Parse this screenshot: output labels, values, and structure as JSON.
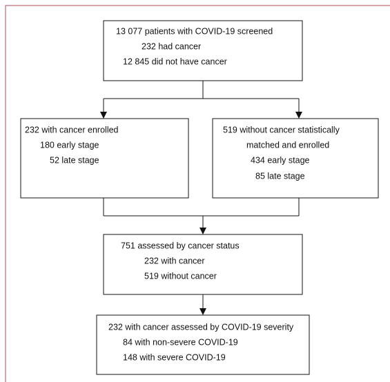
{
  "nodes": [
    {
      "lines": [
        "13 077 patients with COVID-19 screened",
        "232 had cancer",
        "12 845 did not have cancer"
      ]
    },
    {
      "lines": [
        "232 with cancer enrolled",
        "180 early stage",
        "52 late stage"
      ]
    },
    {
      "lines": [
        "519 without cancer statistically",
        "matched and enrolled",
        "434 early stage",
        "85 late stage"
      ]
    },
    {
      "lines": [
        "751 assessed by cancer status",
        "232 with cancer",
        "519 without cancer"
      ]
    },
    {
      "lines": [
        "232 with cancer assessed by COVID-19 severity",
        "84 with non-severe COVID-19",
        "148 with severe COVID-19"
      ]
    }
  ]
}
